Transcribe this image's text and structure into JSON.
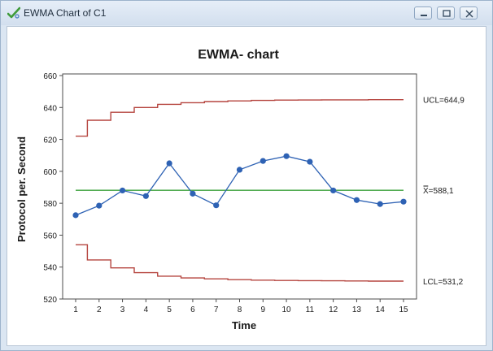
{
  "window": {
    "title": "EWMA Chart of C1",
    "app_icon": "minitab-check-icon",
    "controls": [
      "minimize-icon",
      "maximize-icon",
      "close-icon"
    ]
  },
  "chart_data": {
    "type": "line",
    "title": "EWMA- chart",
    "xlabel": "Time",
    "ylabel": "Protocol per. Second",
    "x": [
      1,
      2,
      3,
      4,
      5,
      6,
      7,
      8,
      9,
      10,
      11,
      12,
      13,
      14,
      15
    ],
    "xlim": [
      1,
      15
    ],
    "ylim": [
      520,
      660
    ],
    "yticks": [
      520,
      540,
      560,
      580,
      600,
      620,
      640,
      660
    ],
    "series": [
      {
        "values": [
          572.5,
          578.5,
          588.0,
          584.5,
          605.0,
          586.0,
          578.7,
          601.0,
          606.5,
          609.5,
          606.0,
          588.0,
          582.0,
          579.5,
          581.0
        ],
        "color": "#2e62b4"
      }
    ],
    "center_line": {
      "value": 588.1,
      "label": "X̿=588,1",
      "color": "#3aa03a"
    },
    "ucl": {
      "label": "UCL=644,9",
      "values": [
        622.0,
        632.0,
        637.0,
        640.0,
        642.0,
        643.0,
        643.7,
        644.1,
        644.4,
        644.6,
        644.7,
        644.8,
        644.8,
        644.9,
        644.9
      ],
      "color": "#b5443e"
    },
    "lcl": {
      "label": "LCL=531,2",
      "values": [
        554.0,
        544.5,
        539.5,
        536.5,
        534.3,
        533.2,
        532.6,
        532.1,
        531.8,
        531.6,
        531.5,
        531.4,
        531.3,
        531.2,
        531.2
      ],
      "color": "#b5443e"
    },
    "grid": false,
    "legend": "none"
  }
}
